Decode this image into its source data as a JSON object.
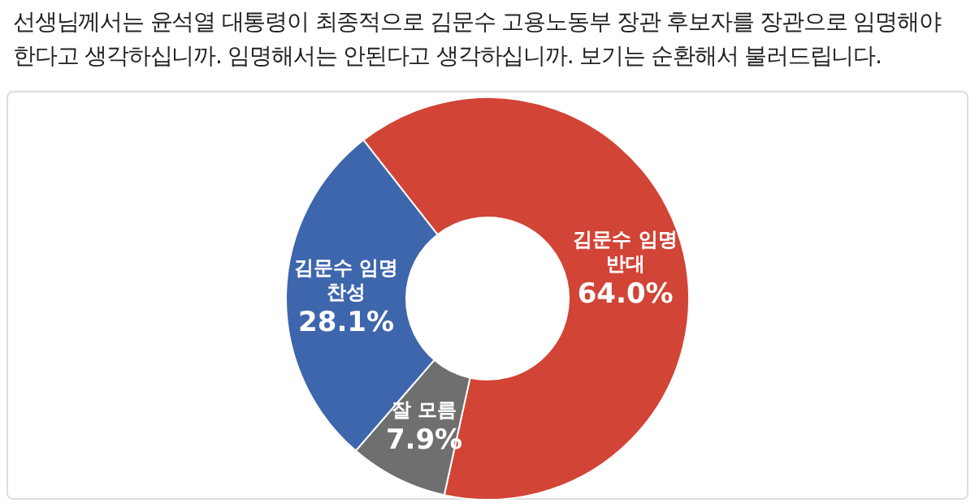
{
  "chart_data": {
    "type": "donut",
    "title": "선생님께서는 윤석열 대통령이 최종적으로 김문수 고용노동부 장관 후보자를 장관으로 임명해야 한다고 생각하십니까. 임명해서는 안된다고 생각하십니까. 보기는 순환해서 불러드립니다.",
    "categories": [
      "김문수 임명 반대",
      "잘 모름",
      "김문수 임명 찬성"
    ],
    "values": [
      64.0,
      7.9,
      28.1
    ],
    "colors": [
      "#d14436",
      "#6f6f6f",
      "#3e66ad"
    ],
    "value_labels": [
      "64.0%",
      "7.9%",
      "28.1%"
    ]
  }
}
